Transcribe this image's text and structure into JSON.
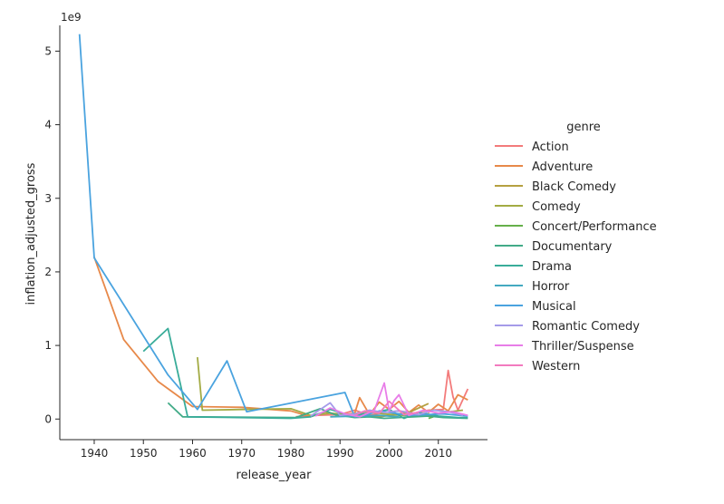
{
  "chart_data": {
    "type": "line",
    "xlabel": "release_year",
    "ylabel": "inflation_adjusted_gross",
    "y_scale_label": "1e9",
    "legend_title": "genre",
    "legend_placement": "right",
    "grid": false,
    "xlim": [
      1933,
      2020
    ],
    "ylim": [
      -0.28,
      5.35
    ],
    "x_ticks": [
      1940,
      1950,
      1960,
      1970,
      1980,
      1990,
      2000,
      2010
    ],
    "y_ticks": [
      0,
      1,
      2,
      3,
      4,
      5
    ],
    "series": [
      {
        "name": "Action",
        "color": "#f37b7b",
        "x": [
          1981,
          1985,
          1990,
          1993,
          1996,
          1999,
          2002,
          2005,
          2008,
          2011,
          2012,
          2013,
          2014,
          2016
        ],
        "y": [
          0.03,
          0.05,
          0.06,
          0.12,
          0.05,
          0.09,
          0.11,
          0.08,
          0.12,
          0.13,
          0.66,
          0.3,
          0.12,
          0.41
        ]
      },
      {
        "name": "Adventure",
        "color": "#e7894a",
        "x": [
          1940,
          1946,
          1953,
          1960,
          1970,
          1980,
          1984,
          1987,
          1990,
          1993,
          1994,
          1996,
          1998,
          2000,
          2002,
          2004,
          2006,
          2008,
          2010,
          2012,
          2014,
          2016
        ],
        "y": [
          2.2,
          1.08,
          0.51,
          0.17,
          0.16,
          0.11,
          0.03,
          0.1,
          0.05,
          0.08,
          0.29,
          0.06,
          0.23,
          0.13,
          0.24,
          0.09,
          0.19,
          0.09,
          0.2,
          0.11,
          0.33,
          0.26
        ]
      },
      {
        "name": "Black Comedy",
        "color": "#b5a041",
        "x": [
          1989,
          1993,
          1998,
          2004,
          2008
        ],
        "y": [
          0.04,
          0.06,
          0.03,
          0.09,
          0.21
        ]
      },
      {
        "name": "Comedy",
        "color": "#a3ab44",
        "x": [
          1961,
          1962,
          1970,
          1980,
          1984,
          1988,
          1992,
          1995,
          1999,
          2003,
          2007,
          2011,
          2015
        ],
        "y": [
          0.84,
          0.12,
          0.13,
          0.14,
          0.05,
          0.08,
          0.06,
          0.1,
          0.07,
          0.05,
          0.04,
          0.09,
          0.12
        ]
      },
      {
        "name": "Concert/Performance",
        "color": "#66b04a",
        "x": [
          2008,
          2009
        ],
        "y": [
          0.01,
          0.03
        ]
      },
      {
        "name": "Documentary",
        "color": "#42ab88",
        "x": [
          1955,
          1958,
          1981,
          1986,
          1989,
          1993,
          1996,
          1999,
          2002,
          2005,
          2008,
          2011,
          2016
        ],
        "y": [
          0.22,
          0.03,
          0.02,
          0.14,
          0.06,
          0.02,
          0.03,
          0.01,
          0.02,
          0.03,
          0.04,
          0.02,
          0.01
        ]
      },
      {
        "name": "Drama",
        "color": "#39ac99",
        "x": [
          1950,
          1955,
          1959,
          1980,
          1984,
          1988,
          1992,
          1996,
          2000,
          2003,
          2006,
          2010,
          2014,
          2016
        ],
        "y": [
          0.92,
          1.23,
          0.03,
          0.01,
          0.03,
          0.13,
          0.05,
          0.08,
          0.13,
          0.01,
          0.09,
          0.04,
          0.02,
          0.02
        ]
      },
      {
        "name": "Horror",
        "color": "#44a9c0",
        "x": [
          1988,
          1994,
          1998,
          2002
        ],
        "y": [
          0.03,
          0.04,
          0.05,
          0.03
        ]
      },
      {
        "name": "Musical",
        "color": "#4aa3df",
        "x": [
          1937,
          1940,
          1955,
          1961,
          1967,
          1971,
          1991,
          1993,
          1995,
          1998,
          2004,
          2011,
          2016
        ],
        "y": [
          5.23,
          2.19,
          0.6,
          0.13,
          0.79,
          0.1,
          0.36,
          0.03,
          0.05,
          0.11,
          0.05,
          0.07,
          0.04
        ]
      },
      {
        "name": "Romantic Comedy",
        "color": "#a59be9",
        "x": [
          1984,
          1988,
          1990,
          1993,
          1996,
          1999,
          2002,
          2006,
          2009,
          2012,
          2015
        ],
        "y": [
          0.04,
          0.22,
          0.05,
          0.07,
          0.12,
          0.09,
          0.11,
          0.06,
          0.12,
          0.1,
          0.05
        ]
      },
      {
        "name": "Thriller/Suspense",
        "color": "#e87de8",
        "x": [
          1985,
          1988,
          1991,
          1994,
          1997,
          1999,
          2000,
          2001,
          2002,
          2004,
          2007,
          2010,
          2013,
          2016
        ],
        "y": [
          0.04,
          0.15,
          0.07,
          0.03,
          0.12,
          0.49,
          0.11,
          0.25,
          0.33,
          0.05,
          0.12,
          0.08,
          0.1,
          0.05
        ]
      },
      {
        "name": "Western",
        "color": "#f27bbf",
        "x": [
          1993,
          1995,
          1998,
          2000,
          2003,
          2006
        ],
        "y": [
          0.05,
          0.11,
          0.08,
          0.24,
          0.06,
          0.09
        ]
      }
    ]
  }
}
